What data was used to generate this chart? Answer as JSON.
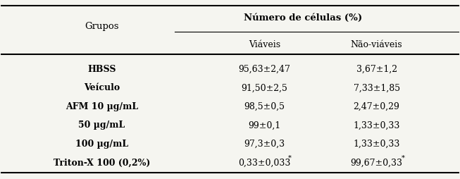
{
  "col_header_main": "Número de células (%)",
  "col_header_left": "Grupos",
  "col_header_viavel": "Viáveis",
  "col_header_nao_viavel": "Não-viáveis",
  "rows": [
    {
      "grupo": "HBSS",
      "viaveis": "95,63±2,47",
      "nao_viaveis": "3,67±1,2",
      "bold_grupo": true
    },
    {
      "grupo": "Veículo",
      "viaveis": "91,50±2,5",
      "nao_viaveis": "7,33±1,85",
      "bold_grupo": true
    },
    {
      "grupo": "AFM 10 µg/mL",
      "viaveis": "98,5±0,5",
      "nao_viaveis": "2,47±0,29",
      "bold_grupo": true
    },
    {
      "grupo": "50 µg/mL",
      "viaveis": "99±0,1",
      "nao_viaveis": "1,33±0,33",
      "bold_grupo": true
    },
    {
      "grupo": "100 µg/mL",
      "viaveis": "97,3±0,3",
      "nao_viaveis": "1,33±0,33",
      "bold_grupo": true
    },
    {
      "grupo": "Triton-X 100 (0,2%)",
      "viaveis": "0,33±0,033*",
      "nao_viaveis": "99,67±0,33*",
      "bold_grupo": true
    }
  ],
  "bg_color": "#f5f5f0",
  "font_size_header": 9.5,
  "font_size_subheader": 9,
  "font_size_data": 9
}
